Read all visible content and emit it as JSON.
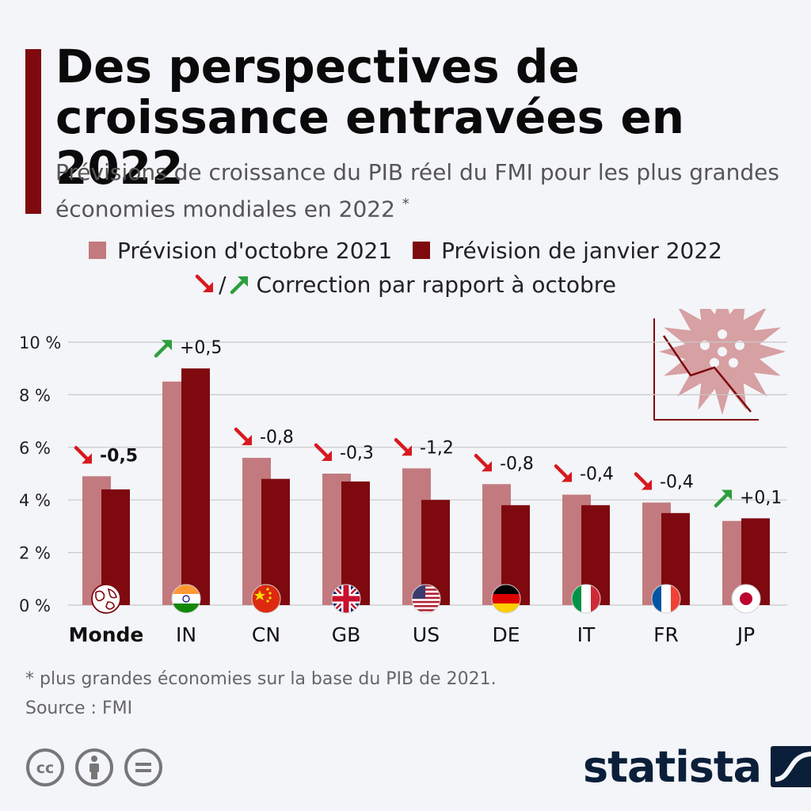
{
  "header": {
    "title": "Des perspectives de croissance entravées en 2022",
    "subtitle": "Prévisions de croissance du PIB réel du FMI pour les plus grandes économies mondiales en 2022",
    "subtitle_marker": "*"
  },
  "legend": {
    "series_1": "Prévision d'octobre 2021",
    "series_2": "Prévision de janvier 2022",
    "separator": "/",
    "correction_label": "Correction par rapport à octobre"
  },
  "colors": {
    "accent": "#7e0a10",
    "october": "#c27a7e",
    "january": "#7e0a10",
    "down_arrow": "#d71920",
    "up_arrow": "#2e9e3f",
    "virus": "#d7a0a3"
  },
  "chart_data": {
    "type": "bar",
    "categories": [
      "Monde",
      "IN",
      "CN",
      "GB",
      "US",
      "DE",
      "IT",
      "FR",
      "JP"
    ],
    "series": [
      {
        "name": "Prévision d'octobre 2021",
        "values": [
          4.9,
          8.5,
          5.6,
          5.0,
          5.2,
          4.6,
          4.2,
          3.9,
          3.2
        ]
      },
      {
        "name": "Prévision de janvier 2022",
        "values": [
          4.4,
          9.0,
          4.8,
          4.7,
          4.0,
          3.8,
          3.8,
          3.5,
          3.3
        ]
      }
    ],
    "corrections": [
      "-0,5",
      "+0,5",
      "-0,8",
      "-0,3",
      "-1,2",
      "-0,8",
      "-0,4",
      "-0,4",
      "+0,1"
    ],
    "correction_direction": [
      "down",
      "up",
      "down",
      "down",
      "down",
      "down",
      "down",
      "down",
      "up"
    ],
    "y_ticks": [
      "0 %",
      "2 %",
      "4 %",
      "6 %",
      "8 %",
      "10 %"
    ],
    "y_tick_values": [
      0,
      2,
      4,
      6,
      8,
      10
    ],
    "ylim": [
      0,
      10
    ],
    "grid": true,
    "category_icons": [
      "globe-icon",
      "flag-india-icon",
      "flag-china-icon",
      "flag-uk-icon",
      "flag-usa-icon",
      "flag-germany-icon",
      "flag-italy-icon",
      "flag-france-icon",
      "flag-japan-icon"
    ]
  },
  "footer": {
    "footnote": "* plus grandes économies sur la base du PIB de 2021.",
    "source": "Source : FMI",
    "brand": "statista"
  }
}
